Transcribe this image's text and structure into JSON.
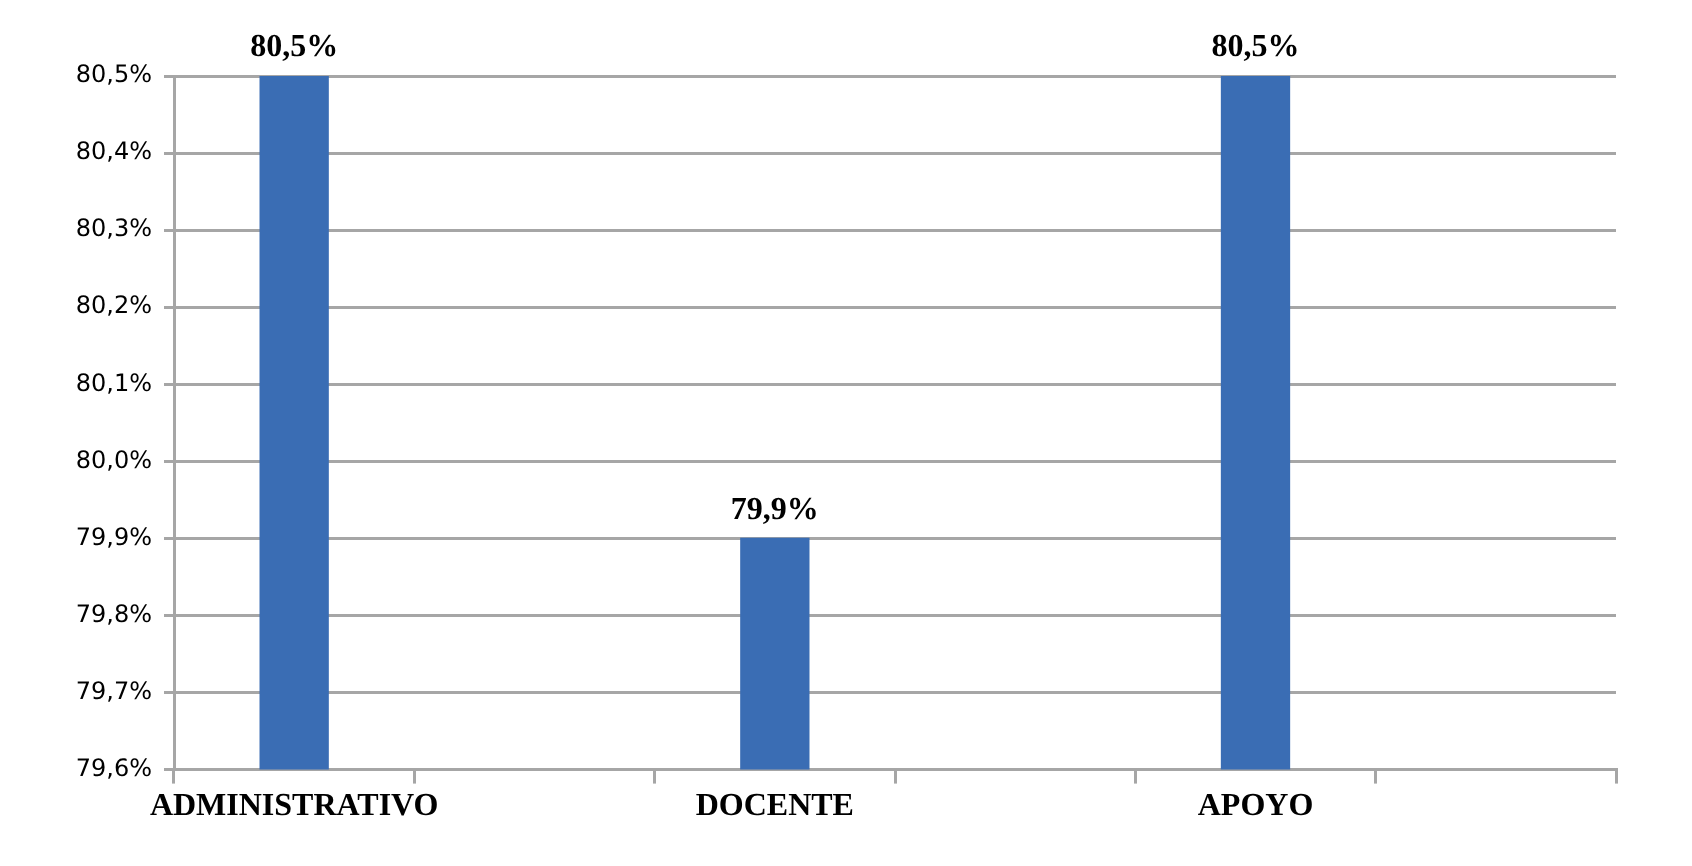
{
  "chart_data": {
    "type": "bar",
    "categories": [
      "ADMINISTRATIVO",
      null,
      "DOCENTE",
      null,
      "APOYO",
      null
    ],
    "values": [
      80.5,
      null,
      79.9,
      null,
      80.5,
      null
    ],
    "value_labels": [
      "80,5%",
      null,
      "79,9%",
      null,
      "80,5%",
      null
    ],
    "color": "#3a6db4",
    "ylim": [
      79.6,
      80.5
    ],
    "yticks": [
      {
        "value": 79.6,
        "label": "79,6%"
      },
      {
        "value": 79.7,
        "label": "79,7%"
      },
      {
        "value": 79.8,
        "label": "79,8%"
      },
      {
        "value": 79.9,
        "label": "79,9%"
      },
      {
        "value": 80.0,
        "label": "80,0%"
      },
      {
        "value": 80.1,
        "label": "80,1%"
      },
      {
        "value": 80.2,
        "label": "80,2%"
      },
      {
        "value": 80.3,
        "label": "80,3%"
      },
      {
        "value": 80.4,
        "label": "80,4%"
      },
      {
        "value": 80.5,
        "label": "80,5%"
      }
    ],
    "grid": "y",
    "legend": false
  }
}
